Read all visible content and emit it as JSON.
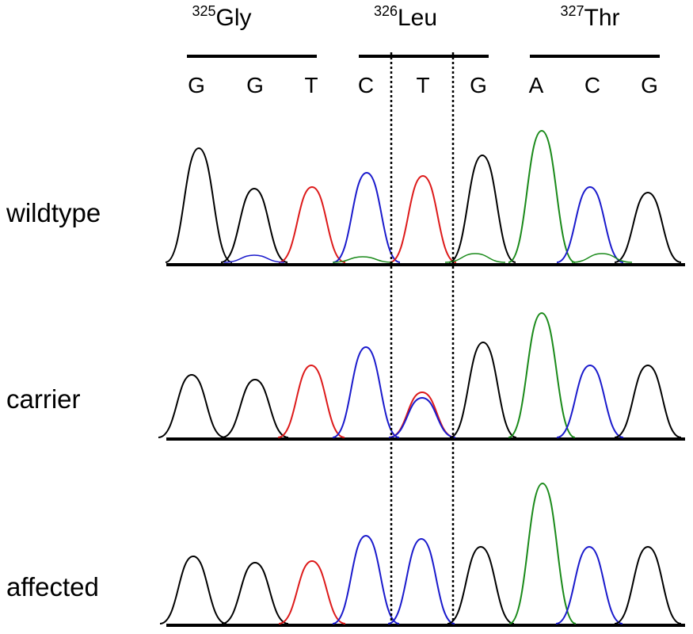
{
  "codons": [
    {
      "number": "325",
      "aa": "Gly",
      "bases": [
        "G",
        "G",
        "T"
      ]
    },
    {
      "number": "326",
      "aa": "Leu",
      "bases": [
        "C",
        "T",
        "G"
      ]
    },
    {
      "number": "327",
      "aa": "Thr",
      "bases": [
        "A",
        "C",
        "G"
      ]
    }
  ],
  "samples": [
    {
      "label": "wildtype"
    },
    {
      "label": "carrier"
    },
    {
      "label": "affected"
    }
  ],
  "colors": {
    "A": "#1a8a1a",
    "C": "#1a1acc",
    "G": "#000000",
    "T": "#dd1a1a"
  },
  "highlighted_base": "T"
}
